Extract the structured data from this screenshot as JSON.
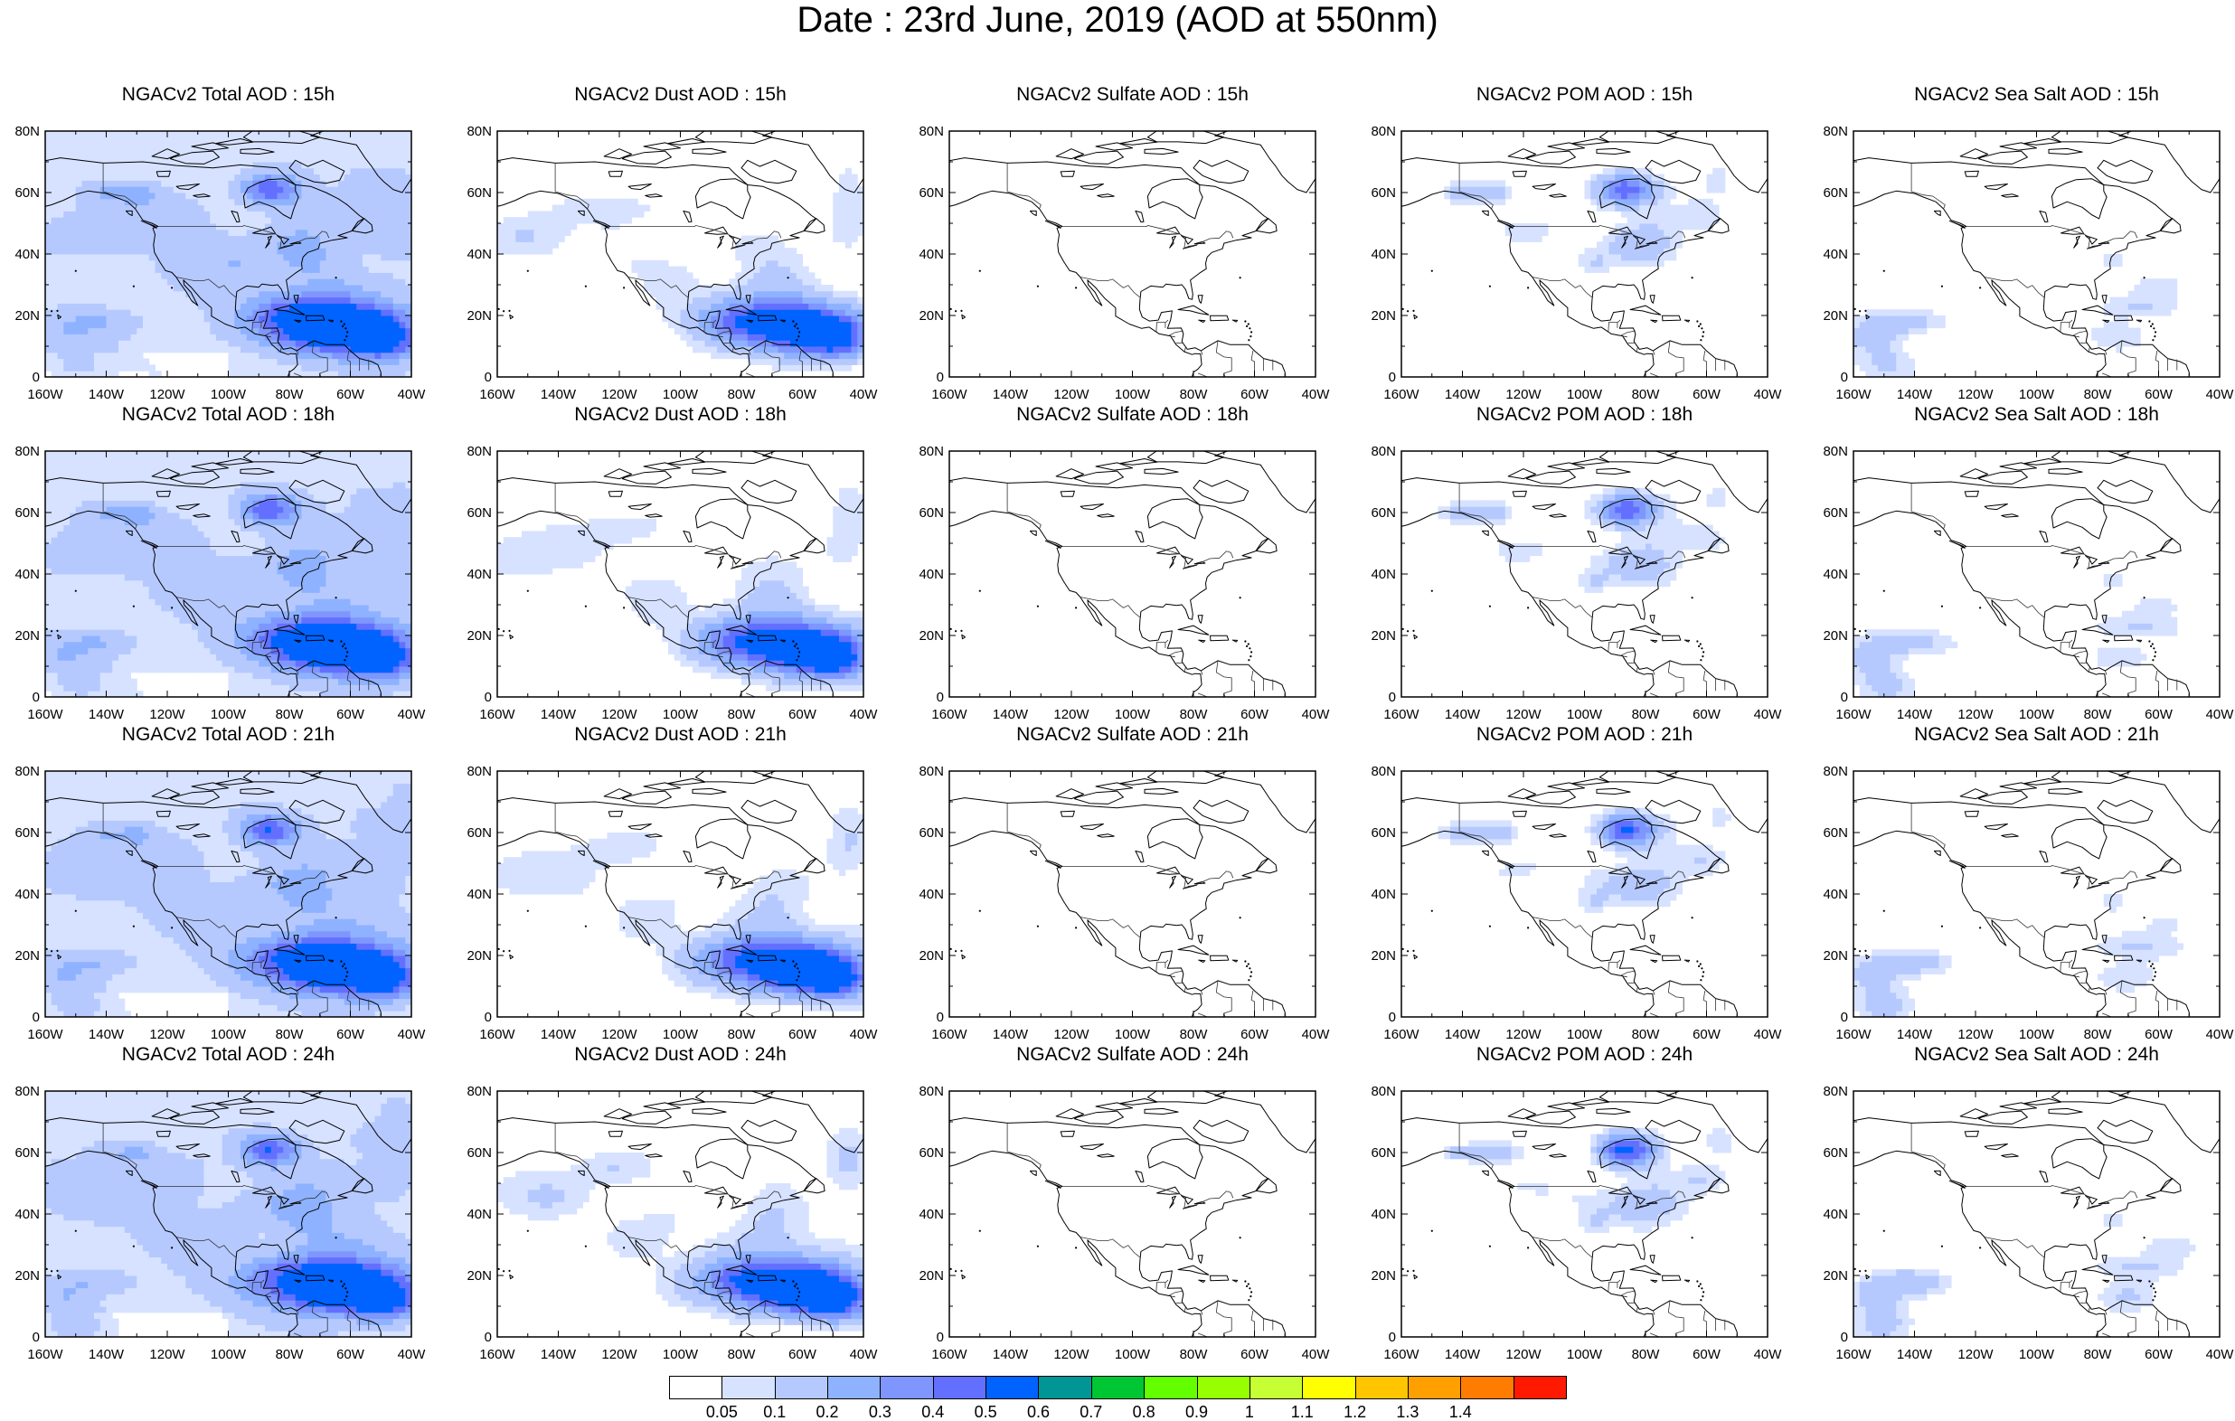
{
  "title": "Date : 23rd June, 2019 (AOD at 550nm)",
  "panel_titles": [
    [
      "NGACv2 Total AOD : 15h",
      "NGACv2 Dust AOD : 15h",
      "NGACv2 Sulfate AOD : 15h",
      "NGACv2 POM AOD : 15h",
      "NGACv2 Sea Salt AOD : 15h"
    ],
    [
      "NGACv2 Total AOD : 18h",
      "NGACv2 Dust AOD : 18h",
      "NGACv2 Sulfate AOD : 18h",
      "NGACv2 POM AOD : 18h",
      "NGACv2 Sea Salt AOD : 18h"
    ],
    [
      "NGACv2 Total AOD : 21h",
      "NGACv2 Dust AOD : 21h",
      "NGACv2 Sulfate AOD : 21h",
      "NGACv2 POM AOD : 21h",
      "NGACv2 Sea Salt AOD : 21h"
    ],
    [
      "NGACv2 Total AOD : 24h",
      "NGACv2 Dust AOD : 24h",
      "NGACv2 Sulfate AOD : 24h",
      "NGACv2 POM AOD : 24h",
      "NGACv2 Sea Salt  AOD : 24h"
    ]
  ],
  "map": {
    "lon_range": [
      -160,
      -40
    ],
    "lat_range": [
      0,
      80
    ],
    "lon_ticks": [
      "160W",
      "140W",
      "120W",
      "100W",
      "80W",
      "60W",
      "40W"
    ],
    "lat_ticks": [
      "0",
      "20N",
      "40N",
      "60N",
      "80N"
    ]
  },
  "colorbar": {
    "colors": [
      "#ffffff",
      "#d6e2ff",
      "#b5c9ff",
      "#8eb2ff",
      "#7f96ff",
      "#6370ff",
      "#0063ff",
      "#009696",
      "#00c633",
      "#63ff00",
      "#96ff00",
      "#c6ff33",
      "#ffff00",
      "#ffc600",
      "#ffa000",
      "#ff7c00",
      "#ff1900"
    ],
    "labels": [
      "0.05",
      "0.1",
      "0.2",
      "0.3",
      "0.4",
      "0.5",
      "0.6",
      "0.7",
      "0.8",
      "0.9",
      "1",
      "1.1",
      "1.2",
      "1.3",
      "1.4"
    ]
  }
}
